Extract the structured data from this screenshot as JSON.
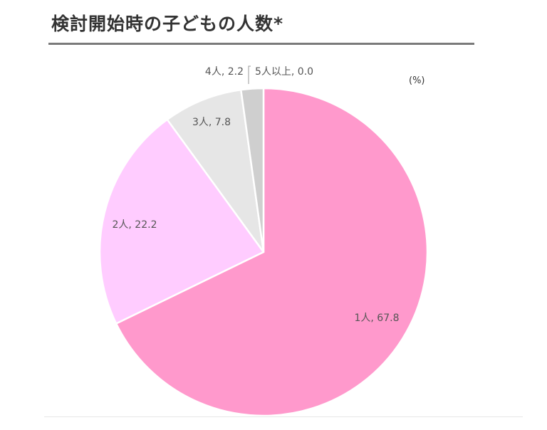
{
  "title": "検討開始時の子どもの人数*",
  "unit": "(%)",
  "chart_data": {
    "type": "pie",
    "title": "検討開始時の子どもの人数*",
    "slices": [
      {
        "label": "1人",
        "value": 67.8,
        "color": "#ff99cc"
      },
      {
        "label": "2人",
        "value": 22.2,
        "color": "#ffccff"
      },
      {
        "label": "3人",
        "value": 7.8,
        "color": "#e6e6e6"
      },
      {
        "label": "4人",
        "value": 2.2,
        "color": "#cfcfcf"
      },
      {
        "label": "5人以上",
        "value": 0.0,
        "color": "#bfbfbf"
      }
    ],
    "label_format": "{label}, {value}",
    "start": "12 o'clock",
    "direction": "clockwise"
  }
}
